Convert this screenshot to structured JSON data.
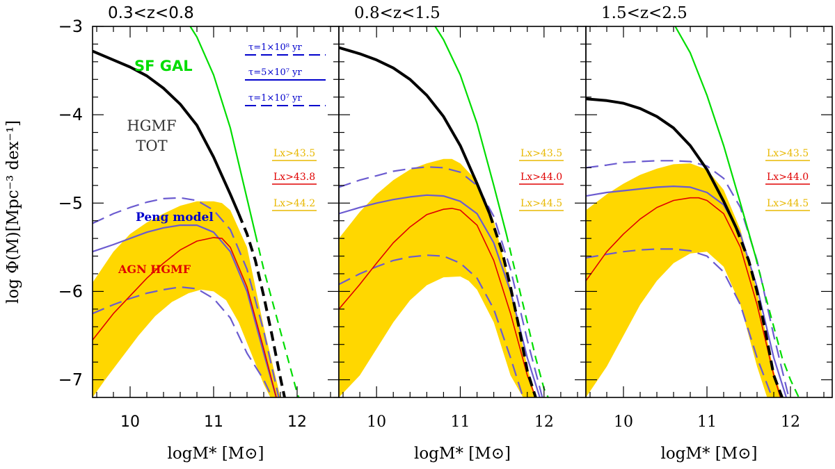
{
  "figure": {
    "ylabel": "log Φ(M)[Mpc⁻³ dex⁻¹]",
    "ylim": [
      -7.2,
      -3.0
    ],
    "xlim": [
      9.55,
      12.5
    ],
    "yticks": [
      -3,
      -4,
      -5,
      -6,
      -7
    ],
    "xticks": [
      10,
      11,
      12
    ]
  },
  "colors": {
    "yellow": "#FFD700",
    "black": "#000000",
    "green": "#00DD00",
    "purple": "#6B5BD0",
    "red": "#E00000",
    "blue": "#0000CC",
    "lx_yellow": "#E8B800",
    "lx_red": "#E00000"
  },
  "chart_data": [
    {
      "type": "line",
      "title": "0.3<z<0.8",
      "xlabel": "logM* [M⊙]",
      "annotations": {
        "sfgal": "SF GAL",
        "hgmf_line1": "HGMF",
        "hgmf_line2": "TOT",
        "peng": "Peng model",
        "agn": "AGN   HGMF"
      },
      "tau_labels": [
        "τ=1×10⁸ yr",
        "τ=5×10⁷ yr",
        "τ=1×10⁷ yr"
      ],
      "lx_labels": [
        {
          "text": "Lx>43.5",
          "color": "lx_yellow"
        },
        {
          "text": "Lx>43.8",
          "color": "lx_red"
        },
        {
          "text": "Lx>44.2",
          "color": "lx_yellow"
        }
      ],
      "series": [
        {
          "name": "HGMF TOT",
          "x": [
            9.55,
            9.8,
            10.0,
            10.2,
            10.4,
            10.6,
            10.8,
            11.0,
            11.2,
            11.3
          ],
          "y": [
            -3.28,
            -3.38,
            -3.46,
            -3.56,
            -3.7,
            -3.88,
            -4.12,
            -4.48,
            -4.9,
            -5.12
          ]
        },
        {
          "name": "HGMF TOT extrapolated",
          "x": [
            11.3,
            11.4,
            11.5,
            11.6,
            11.7,
            11.8,
            11.85
          ],
          "y": [
            -5.12,
            -5.35,
            -5.65,
            -6.05,
            -6.5,
            -6.98,
            -7.2
          ]
        },
        {
          "name": "SF GAL",
          "x": [
            10.72,
            10.8,
            11.0,
            11.2,
            11.4,
            11.5
          ],
          "y": [
            -3.0,
            -3.12,
            -3.55,
            -4.15,
            -4.95,
            -5.35
          ]
        },
        {
          "name": "SF GAL extrapolated",
          "x": [
            11.5,
            11.6,
            11.7,
            11.8,
            11.9,
            12.0,
            12.02
          ],
          "y": [
            -5.35,
            -5.75,
            -6.1,
            -6.45,
            -6.8,
            -7.15,
            -7.2
          ]
        },
        {
          "name": "Peng model",
          "x": [
            9.55,
            9.8,
            10.0,
            10.2,
            10.4,
            10.6,
            10.8,
            11.0,
            11.2,
            11.4,
            11.6,
            11.75
          ],
          "y": [
            -5.55,
            -5.47,
            -5.4,
            -5.33,
            -5.28,
            -5.25,
            -5.25,
            -5.33,
            -5.55,
            -6.0,
            -6.7,
            -7.2
          ]
        },
        {
          "name": "Peng upper",
          "x": [
            9.55,
            9.8,
            10.0,
            10.2,
            10.4,
            10.6,
            10.8,
            11.0,
            11.2,
            11.4,
            11.6,
            11.78
          ],
          "y": [
            -5.23,
            -5.12,
            -5.05,
            -4.99,
            -4.95,
            -4.94,
            -4.97,
            -5.08,
            -5.3,
            -5.75,
            -6.45,
            -7.2
          ]
        },
        {
          "name": "Peng lower",
          "x": [
            9.55,
            9.8,
            10.0,
            10.2,
            10.4,
            10.6,
            10.8,
            11.0,
            11.2,
            11.4,
            11.6,
            11.7
          ],
          "y": [
            -6.25,
            -6.15,
            -6.08,
            -6.02,
            -5.98,
            -5.95,
            -5.97,
            -6.08,
            -6.3,
            -6.7,
            -7.0,
            -7.2
          ]
        },
        {
          "name": "AGN HGMF",
          "x": [
            9.55,
            9.8,
            10.0,
            10.2,
            10.4,
            10.6,
            10.8,
            11.0,
            11.1,
            11.2,
            11.4,
            11.6,
            11.75
          ],
          "y": [
            -6.55,
            -6.25,
            -6.05,
            -5.85,
            -5.68,
            -5.53,
            -5.43,
            -5.39,
            -5.4,
            -5.5,
            -5.95,
            -6.65,
            -7.2
          ]
        },
        {
          "name": "AGN HGMF 1σ upper",
          "x": [
            9.55,
            9.8,
            10.0,
            10.2,
            10.4,
            10.6,
            10.8,
            11.0,
            11.1,
            11.2,
            11.4,
            11.6,
            11.8
          ],
          "y": [
            -5.9,
            -5.55,
            -5.35,
            -5.22,
            -5.12,
            -5.03,
            -4.98,
            -4.98,
            -5.0,
            -5.08,
            -5.5,
            -6.4,
            -7.2
          ]
        },
        {
          "name": "AGN HGMF 1σ lower",
          "x": [
            9.55,
            9.7,
            9.9,
            10.1,
            10.3,
            10.5,
            10.7,
            10.85,
            11.0,
            11.15,
            11.3,
            11.45,
            11.6,
            11.68
          ],
          "y": [
            -7.2,
            -7.0,
            -6.75,
            -6.5,
            -6.28,
            -6.12,
            -6.02,
            -5.98,
            -6.0,
            -6.1,
            -6.35,
            -6.7,
            -7.05,
            -7.2
          ]
        }
      ]
    },
    {
      "type": "line",
      "title": "0.8<z<1.5",
      "xlabel": "logM* [M⊙]",
      "annotations": {},
      "tau_labels": [],
      "lx_labels": [
        {
          "text": "Lx>43.5",
          "color": "lx_yellow"
        },
        {
          "text": "Lx>44.0",
          "color": "lx_red"
        },
        {
          "text": "Lx>44.5",
          "color": "lx_yellow"
        }
      ],
      "series": [
        {
          "name": "HGMF TOT",
          "x": [
            9.55,
            9.8,
            10.0,
            10.2,
            10.4,
            10.6,
            10.8,
            11.0,
            11.2,
            11.35
          ],
          "y": [
            -3.24,
            -3.31,
            -3.38,
            -3.47,
            -3.6,
            -3.78,
            -4.02,
            -4.35,
            -4.78,
            -5.12
          ]
        },
        {
          "name": "HGMF TOT extrapolated",
          "x": [
            11.35,
            11.5,
            11.6,
            11.7,
            11.8,
            11.9
          ],
          "y": [
            -5.12,
            -5.55,
            -5.95,
            -6.4,
            -6.9,
            -7.2
          ]
        },
        {
          "name": "SF GAL",
          "x": [
            10.7,
            10.8,
            11.0,
            11.2,
            11.4,
            11.55
          ],
          "y": [
            -3.0,
            -3.15,
            -3.55,
            -4.1,
            -4.8,
            -5.35
          ]
        },
        {
          "name": "SF GAL extrapolated",
          "x": [
            11.55,
            11.7,
            11.8,
            11.9,
            12.0,
            12.05
          ],
          "y": [
            -5.35,
            -5.95,
            -6.35,
            -6.75,
            -7.1,
            -7.2
          ]
        },
        {
          "name": "Peng model",
          "x": [
            9.55,
            9.8,
            10.0,
            10.2,
            10.4,
            10.6,
            10.8,
            11.0,
            11.2,
            11.4,
            11.6,
            11.8,
            11.95
          ],
          "y": [
            -5.12,
            -5.05,
            -5.0,
            -4.96,
            -4.93,
            -4.91,
            -4.92,
            -4.98,
            -5.12,
            -5.45,
            -6.0,
            -6.75,
            -7.2
          ]
        },
        {
          "name": "Peng upper",
          "x": [
            9.55,
            9.8,
            10.0,
            10.2,
            10.4,
            10.6,
            10.8,
            11.0,
            11.2,
            11.4,
            11.6,
            11.8,
            11.98
          ],
          "y": [
            -4.82,
            -4.74,
            -4.69,
            -4.64,
            -4.61,
            -4.59,
            -4.6,
            -4.65,
            -4.8,
            -5.15,
            -5.75,
            -6.55,
            -7.2
          ]
        },
        {
          "name": "Peng lower",
          "x": [
            9.55,
            9.8,
            10.0,
            10.2,
            10.4,
            10.6,
            10.8,
            11.0,
            11.2,
            11.4,
            11.6,
            11.75
          ],
          "y": [
            -5.92,
            -5.8,
            -5.72,
            -5.65,
            -5.61,
            -5.59,
            -5.6,
            -5.68,
            -5.85,
            -6.2,
            -6.75,
            -7.2
          ]
        },
        {
          "name": "AGN HGMF",
          "x": [
            9.55,
            9.8,
            10.0,
            10.2,
            10.4,
            10.6,
            10.8,
            10.9,
            11.0,
            11.2,
            11.4,
            11.6,
            11.8,
            11.9
          ],
          "y": [
            -6.2,
            -5.92,
            -5.68,
            -5.45,
            -5.27,
            -5.13,
            -5.07,
            -5.06,
            -5.08,
            -5.25,
            -5.65,
            -6.25,
            -6.95,
            -7.2
          ]
        },
        {
          "name": "AGN HGMF 1σ upper",
          "x": [
            9.55,
            9.8,
            10.0,
            10.2,
            10.4,
            10.6,
            10.8,
            10.9,
            11.0,
            11.2,
            11.4,
            11.6,
            11.8,
            11.9
          ],
          "y": [
            -5.4,
            -5.1,
            -4.9,
            -4.74,
            -4.62,
            -4.55,
            -4.5,
            -4.5,
            -4.55,
            -4.75,
            -5.2,
            -5.95,
            -6.85,
            -7.2
          ]
        },
        {
          "name": "AGN HGMF 1σ lower",
          "x": [
            9.55,
            9.8,
            10.0,
            10.2,
            10.4,
            10.6,
            10.8,
            11.0,
            11.1,
            11.2,
            11.4,
            11.6,
            11.75
          ],
          "y": [
            -7.2,
            -6.95,
            -6.65,
            -6.35,
            -6.1,
            -5.93,
            -5.84,
            -5.83,
            -5.88,
            -5.98,
            -6.35,
            -6.95,
            -7.2
          ]
        }
      ]
    },
    {
      "type": "line",
      "title": "1.5<z<2.5",
      "xlabel": "logM* [M⊙]",
      "annotations": {},
      "tau_labels": [],
      "lx_labels": [
        {
          "text": "Lx>43.5",
          "color": "lx_yellow"
        },
        {
          "text": "Lx>44.0",
          "color": "lx_red"
        },
        {
          "text": "Lx>44.5",
          "color": "lx_yellow"
        }
      ],
      "series": [
        {
          "name": "HGMF TOT",
          "x": [
            9.55,
            9.8,
            10.0,
            10.2,
            10.4,
            10.6,
            10.8,
            11.0,
            11.2,
            11.35
          ],
          "y": [
            -3.82,
            -3.84,
            -3.87,
            -3.93,
            -4.02,
            -4.15,
            -4.35,
            -4.62,
            -4.98,
            -5.28
          ]
        },
        {
          "name": "HGMF TOT extrapolated",
          "x": [
            11.35,
            11.5,
            11.6,
            11.7,
            11.8,
            11.9
          ],
          "y": [
            -5.28,
            -5.65,
            -6.0,
            -6.45,
            -6.95,
            -7.2
          ]
        },
        {
          "name": "SF GAL",
          "x": [
            10.62,
            10.8,
            11.0,
            11.2,
            11.4,
            11.58
          ],
          "y": [
            -3.0,
            -3.3,
            -3.78,
            -4.35,
            -5.0,
            -5.6
          ]
        },
        {
          "name": "SF GAL extrapolated",
          "x": [
            11.58,
            11.7,
            11.8,
            11.9,
            12.0,
            12.1
          ],
          "y": [
            -5.6,
            -6.05,
            -6.4,
            -6.75,
            -7.0,
            -7.2
          ]
        },
        {
          "name": "Peng model",
          "x": [
            9.55,
            9.8,
            10.0,
            10.2,
            10.4,
            10.6,
            10.8,
            11.0,
            11.2,
            11.4,
            11.6,
            11.8,
            11.95
          ],
          "y": [
            -4.92,
            -4.88,
            -4.86,
            -4.84,
            -4.82,
            -4.81,
            -4.82,
            -4.88,
            -5.02,
            -5.35,
            -5.95,
            -6.75,
            -7.2
          ]
        },
        {
          "name": "Peng upper",
          "x": [
            9.55,
            9.8,
            10.0,
            10.2,
            10.4,
            10.6,
            10.8,
            11.0,
            11.2,
            11.4,
            11.6,
            11.8,
            11.98
          ],
          "y": [
            -4.6,
            -4.57,
            -4.54,
            -4.53,
            -4.52,
            -4.52,
            -4.53,
            -4.58,
            -4.72,
            -5.05,
            -5.65,
            -6.5,
            -7.2
          ]
        },
        {
          "name": "Peng lower",
          "x": [
            9.55,
            9.8,
            10.0,
            10.2,
            10.4,
            10.6,
            10.8,
            11.0,
            11.2,
            11.4,
            11.6,
            11.78
          ],
          "y": [
            -5.62,
            -5.58,
            -5.55,
            -5.53,
            -5.52,
            -5.52,
            -5.54,
            -5.6,
            -5.78,
            -6.15,
            -6.75,
            -7.2
          ]
        },
        {
          "name": "AGN HGMF",
          "x": [
            9.55,
            9.8,
            10.0,
            10.2,
            10.4,
            10.6,
            10.8,
            10.9,
            11.0,
            11.2,
            11.4,
            11.6,
            11.8,
            11.88
          ],
          "y": [
            -5.88,
            -5.55,
            -5.35,
            -5.18,
            -5.05,
            -4.97,
            -4.94,
            -4.94,
            -4.97,
            -5.12,
            -5.5,
            -6.15,
            -6.95,
            -7.2
          ]
        },
        {
          "name": "AGN HGMF 1σ upper",
          "x": [
            9.55,
            9.8,
            10.0,
            10.2,
            10.4,
            10.6,
            10.8,
            11.0,
            11.2,
            11.4,
            11.6,
            11.8,
            11.9
          ],
          "y": [
            -5.08,
            -4.9,
            -4.78,
            -4.68,
            -4.61,
            -4.56,
            -4.55,
            -4.62,
            -4.85,
            -5.3,
            -6.0,
            -6.9,
            -7.2
          ]
        },
        {
          "name": "AGN HGMF 1σ lower",
          "x": [
            9.55,
            9.8,
            10.0,
            10.2,
            10.4,
            10.6,
            10.8,
            11.0,
            11.2,
            11.4,
            11.6,
            11.72
          ],
          "y": [
            -7.2,
            -6.85,
            -6.5,
            -6.15,
            -5.88,
            -5.68,
            -5.57,
            -5.55,
            -5.72,
            -6.15,
            -6.85,
            -7.2
          ]
        }
      ]
    }
  ]
}
